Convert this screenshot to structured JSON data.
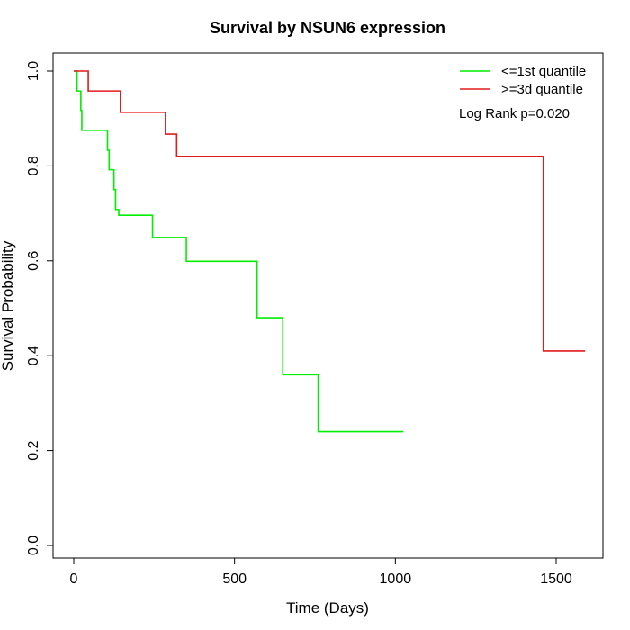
{
  "chart_data": {
    "type": "line",
    "step": true,
    "title": "Survival by NSUN6 expression",
    "xlabel": "Time (Days)",
    "ylabel": "Survival Probability",
    "xlim": [
      0,
      1650
    ],
    "ylim": [
      0,
      1.0
    ],
    "x_ticks": [
      0,
      500,
      1000,
      1500
    ],
    "y_ticks": [
      0.0,
      0.2,
      0.4,
      0.6,
      0.8,
      1.0
    ],
    "x_tick_labels": [
      "0",
      "500",
      "1000",
      "1500"
    ],
    "y_tick_labels": [
      "0.0",
      "0.2",
      "0.4",
      "0.6",
      "0.8",
      "1.0"
    ],
    "grid": false,
    "legend_position": "top-right",
    "annotation": "Log Rank p=0.020",
    "series": [
      {
        "name": "<=1st quantile",
        "color": "#00ee00",
        "x": [
          0,
          10,
          22,
          25,
          105,
          110,
          125,
          130,
          140,
          245,
          350,
          570,
          650,
          760,
          1025
        ],
        "y": [
          1.0,
          0.958,
          0.917,
          0.875,
          0.833,
          0.792,
          0.75,
          0.708,
          0.696,
          0.649,
          0.599,
          0.48,
          0.36,
          0.24,
          0.24
        ]
      },
      {
        "name": ">=3d quantile",
        "color": "#e31a1c",
        "x": [
          0,
          45,
          145,
          285,
          320,
          1460,
          1590
        ],
        "y": [
          1.0,
          0.958,
          0.913,
          0.867,
          0.82,
          0.41,
          0.41
        ]
      }
    ]
  }
}
